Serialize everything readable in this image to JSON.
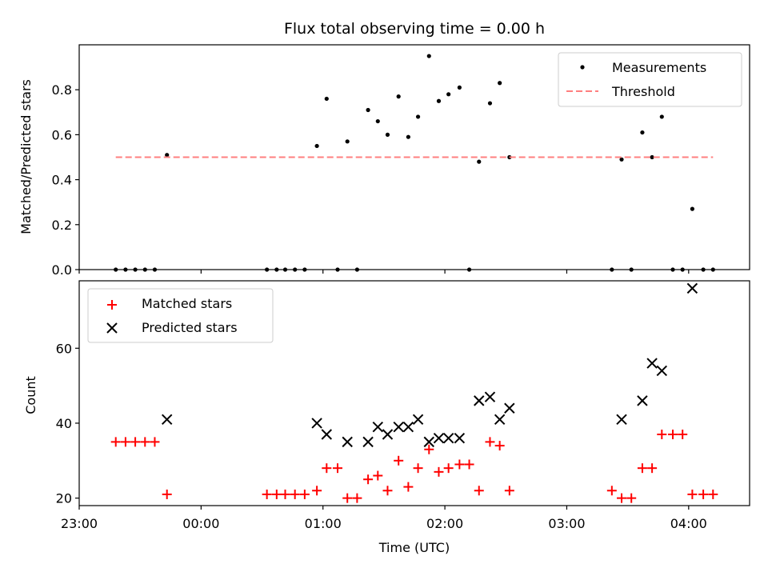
{
  "chart_data": [
    {
      "type": "scatter",
      "panel": "top",
      "title": "Flux total observing time = 0.00 h",
      "ylabel": "Matched/Predicted stars",
      "xlabel": "",
      "xlim": [
        -1.0,
        4.5
      ],
      "ylim": [
        0,
        1.0
      ],
      "yticks": [
        0.0,
        0.2,
        0.4,
        0.6,
        0.8
      ],
      "ytick_labels": [
        "0.0",
        "0.2",
        "0.4",
        "0.6",
        "0.8"
      ],
      "xticks": [
        -1,
        0,
        1,
        2,
        3,
        4
      ],
      "series": [
        {
          "name": "Measurements",
          "color": "#000000",
          "marker": "dot",
          "points": [
            [
              -0.7,
              0.0
            ],
            [
              -0.62,
              0.0
            ],
            [
              -0.54,
              0.0
            ],
            [
              -0.46,
              0.0
            ],
            [
              -0.38,
              0.0
            ],
            [
              -0.28,
              0.51
            ],
            [
              0.54,
              0.0
            ],
            [
              0.62,
              0.0
            ],
            [
              0.69,
              0.0
            ],
            [
              0.77,
              0.0
            ],
            [
              0.85,
              0.0
            ],
            [
              0.95,
              0.55
            ],
            [
              1.03,
              0.76
            ],
            [
              1.12,
              0.0
            ],
            [
              1.2,
              0.57
            ],
            [
              1.28,
              0.0
            ],
            [
              1.37,
              0.71
            ],
            [
              1.45,
              0.66
            ],
            [
              1.53,
              0.6
            ],
            [
              1.62,
              0.77
            ],
            [
              1.7,
              0.59
            ],
            [
              1.78,
              0.68
            ],
            [
              1.87,
              0.95
            ],
            [
              1.95,
              0.75
            ],
            [
              2.03,
              0.78
            ],
            [
              2.12,
              0.81
            ],
            [
              2.2,
              0.0
            ],
            [
              2.28,
              0.48
            ],
            [
              2.37,
              0.74
            ],
            [
              2.45,
              0.83
            ],
            [
              2.53,
              0.5
            ],
            [
              3.37,
              0.0
            ],
            [
              3.45,
              0.49
            ],
            [
              3.53,
              0.0
            ],
            [
              3.62,
              0.61
            ],
            [
              3.7,
              0.5
            ],
            [
              3.78,
              0.68
            ],
            [
              3.87,
              0.0
            ],
            [
              3.95,
              0.0
            ],
            [
              4.03,
              0.27
            ],
            [
              4.12,
              0.0
            ],
            [
              4.2,
              0.0
            ]
          ]
        },
        {
          "name": "Threshold",
          "color": "#ff7f7f",
          "style": "dashed",
          "points": [
            [
              -0.7,
              0.5
            ],
            [
              4.2,
              0.5
            ]
          ]
        }
      ],
      "legend_position": "top-right"
    },
    {
      "type": "scatter",
      "panel": "bottom",
      "title": "",
      "ylabel": "Count",
      "xlabel": "Time (UTC)",
      "xlim": [
        -1.0,
        4.5
      ],
      "ylim": [
        18,
        78
      ],
      "yticks": [
        20,
        40,
        60
      ],
      "ytick_labels": [
        "20",
        "40",
        "60"
      ],
      "xticks": [
        -1,
        0,
        1,
        2,
        3,
        4
      ],
      "xtick_labels": [
        "23:00",
        "00:00",
        "01:00",
        "02:00",
        "03:00",
        "04:00"
      ],
      "series": [
        {
          "name": "Matched stars",
          "color": "#ff0000",
          "marker": "plus",
          "points": [
            [
              -0.7,
              35
            ],
            [
              -0.62,
              35
            ],
            [
              -0.54,
              35
            ],
            [
              -0.46,
              35
            ],
            [
              -0.38,
              35
            ],
            [
              -0.28,
              21
            ],
            [
              0.54,
              21
            ],
            [
              0.62,
              21
            ],
            [
              0.69,
              21
            ],
            [
              0.77,
              21
            ],
            [
              0.85,
              21
            ],
            [
              0.95,
              22
            ],
            [
              1.03,
              28
            ],
            [
              1.12,
              28
            ],
            [
              1.2,
              20
            ],
            [
              1.28,
              20
            ],
            [
              1.37,
              25
            ],
            [
              1.45,
              26
            ],
            [
              1.53,
              22
            ],
            [
              1.62,
              30
            ],
            [
              1.7,
              23
            ],
            [
              1.78,
              28
            ],
            [
              1.87,
              33
            ],
            [
              1.95,
              27
            ],
            [
              2.03,
              28
            ],
            [
              2.12,
              29
            ],
            [
              2.2,
              29
            ],
            [
              2.28,
              22
            ],
            [
              2.37,
              35
            ],
            [
              2.45,
              34
            ],
            [
              2.53,
              22
            ],
            [
              3.37,
              22
            ],
            [
              3.45,
              20
            ],
            [
              3.53,
              20
            ],
            [
              3.62,
              28
            ],
            [
              3.7,
              28
            ],
            [
              3.78,
              37
            ],
            [
              3.87,
              37
            ],
            [
              3.95,
              37
            ],
            [
              4.03,
              21
            ],
            [
              4.12,
              21
            ],
            [
              4.2,
              21
            ]
          ]
        },
        {
          "name": "Predicted stars",
          "color": "#000000",
          "marker": "x",
          "points": [
            [
              -0.28,
              41
            ],
            [
              0.95,
              40
            ],
            [
              1.03,
              37
            ],
            [
              1.2,
              35
            ],
            [
              1.37,
              35
            ],
            [
              1.45,
              39
            ],
            [
              1.53,
              37
            ],
            [
              1.62,
              39
            ],
            [
              1.7,
              39
            ],
            [
              1.78,
              41
            ],
            [
              1.87,
              35
            ],
            [
              1.95,
              36
            ],
            [
              2.03,
              36
            ],
            [
              2.12,
              36
            ],
            [
              2.28,
              46
            ],
            [
              2.37,
              47
            ],
            [
              2.45,
              41
            ],
            [
              2.53,
              44
            ],
            [
              3.45,
              41
            ],
            [
              3.62,
              46
            ],
            [
              3.7,
              56
            ],
            [
              3.78,
              54
            ],
            [
              4.03,
              76
            ]
          ]
        }
      ],
      "legend_position": "top-left"
    }
  ]
}
